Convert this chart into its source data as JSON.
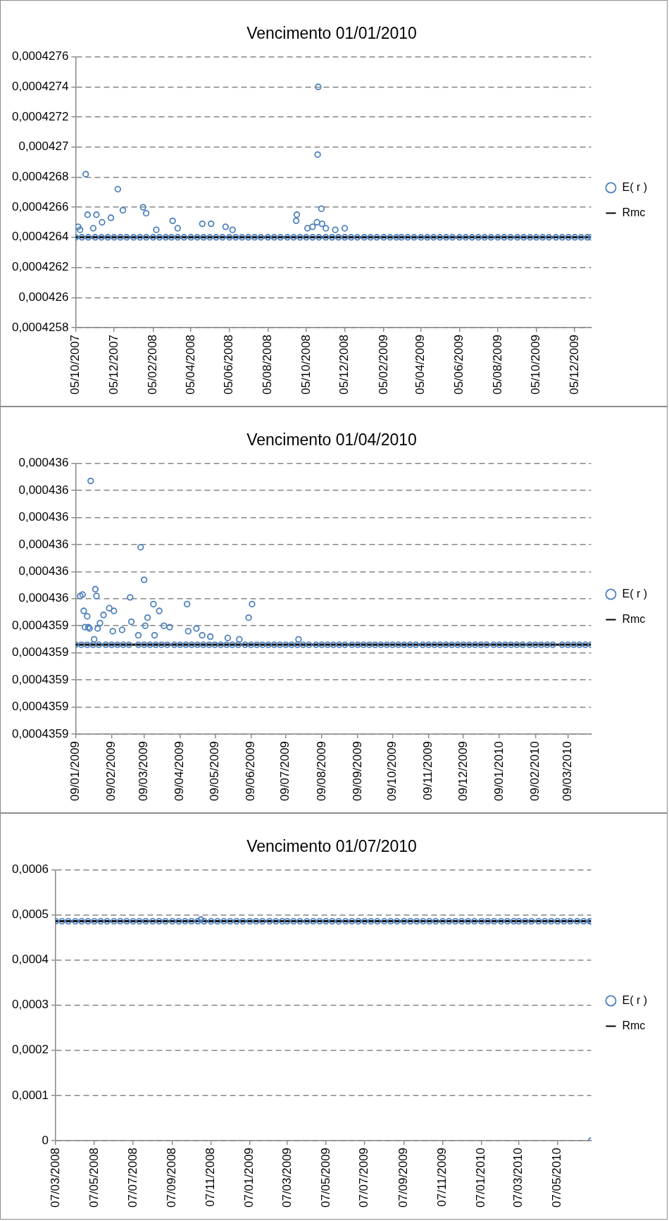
{
  "chart_data": [
    {
      "type": "scatter",
      "title": "Vencimento 01/01/2010",
      "grid": "y",
      "legend": "right",
      "xlim": [
        "2007-10-05",
        "2009-12-31"
      ],
      "xticks": [
        {
          "value": "2007-10-05",
          "label": "05/10/2007"
        },
        {
          "value": "2007-12-05",
          "label": "05/12/2007"
        },
        {
          "value": "2008-02-05",
          "label": "05/02/2008"
        },
        {
          "value": "2008-04-05",
          "label": "05/04/2008"
        },
        {
          "value": "2008-06-05",
          "label": "05/06/2008"
        },
        {
          "value": "2008-08-05",
          "label": "05/08/2008"
        },
        {
          "value": "2008-10-05",
          "label": "05/10/2008"
        },
        {
          "value": "2008-12-05",
          "label": "05/12/2008"
        },
        {
          "value": "2009-02-05",
          "label": "05/02/2009"
        },
        {
          "value": "2009-04-05",
          "label": "05/04/2009"
        },
        {
          "value": "2009-06-05",
          "label": "05/06/2009"
        },
        {
          "value": "2009-08-05",
          "label": "05/08/2009"
        },
        {
          "value": "2009-10-05",
          "label": "05/10/2009"
        },
        {
          "value": "2009-12-05",
          "label": "05/12/2009"
        }
      ],
      "ylim": [
        0.0004258,
        0.0004276
      ],
      "yticks": [
        {
          "value": 0.0004258,
          "label": "0,0004258"
        },
        {
          "value": 0.000426,
          "label": "0,000426"
        },
        {
          "value": 0.0004262,
          "label": "0,0004262"
        },
        {
          "value": 0.0004264,
          "label": "0,0004264"
        },
        {
          "value": 0.0004266,
          "label": "0,0004266"
        },
        {
          "value": 0.0004268,
          "label": "0,0004268"
        },
        {
          "value": 0.000427,
          "label": "0,000427"
        },
        {
          "value": 0.0004272,
          "label": "0,0004272"
        },
        {
          "value": 0.0004274,
          "label": "0,0004274"
        },
        {
          "value": 0.0004276,
          "label": "0,0004276"
        }
      ],
      "series": [
        {
          "name": "E( r )",
          "type": "scatter",
          "marker": "circle",
          "color": "#4f81bd",
          "x": [
            "2007-10-05",
            "2007-10-15",
            "2007-10-25",
            "2007-11-05",
            "2007-11-15",
            "2007-11-25",
            "2007-12-05",
            "2007-12-15",
            "2007-12-25",
            "2008-01-05",
            "2008-01-15",
            "2008-01-25",
            "2008-02-05",
            "2008-02-15",
            "2008-02-25",
            "2008-03-05",
            "2008-03-15",
            "2008-03-25",
            "2008-04-05",
            "2008-04-15",
            "2008-04-25",
            "2008-05-05",
            "2008-05-15",
            "2008-05-25",
            "2008-06-05",
            "2008-06-15",
            "2008-06-25",
            "2008-07-05",
            "2008-07-15",
            "2008-07-25",
            "2008-08-05",
            "2008-08-15",
            "2008-08-25",
            "2008-09-05",
            "2008-09-15",
            "2008-09-25",
            "2008-10-05",
            "2008-10-15",
            "2008-10-25",
            "2008-11-05",
            "2008-11-15",
            "2008-11-25",
            "2008-12-05",
            "2008-12-15",
            "2008-12-25",
            "2009-01-05",
            "2009-01-15",
            "2009-01-25",
            "2009-02-05",
            "2009-02-15",
            "2009-02-25",
            "2009-03-05",
            "2009-03-15",
            "2009-03-25",
            "2009-04-05",
            "2009-04-15",
            "2009-04-25",
            "2009-05-05",
            "2009-05-15",
            "2009-05-25",
            "2009-06-05",
            "2009-06-15",
            "2009-06-25",
            "2009-07-05",
            "2009-07-15",
            "2009-07-25",
            "2009-08-05",
            "2009-08-15",
            "2009-08-25",
            "2009-09-05",
            "2009-09-15",
            "2009-09-25",
            "2009-10-05",
            "2009-10-15",
            "2009-10-25",
            "2009-11-05",
            "2009-11-15",
            "2009-11-25",
            "2009-12-05",
            "2009-12-15",
            "2009-12-25",
            "2009-12-31",
            "2007-10-09",
            "2007-10-21",
            "2007-10-24",
            "2007-11-07",
            "2007-11-16",
            "2007-11-30",
            "2007-12-11",
            "2007-12-19",
            "2008-01-20",
            "2008-01-25",
            "2008-03-07",
            "2008-04-23",
            "2008-05-07",
            "2008-05-30",
            "2008-09-19",
            "2008-09-20",
            "2008-10-07",
            "2008-10-15",
            "2008-10-22",
            "2008-10-23",
            "2008-10-24",
            "2008-10-29",
            "2008-10-30",
            "2007-10-12",
            "2007-11-02",
            "2008-02-10",
            "2008-03-15",
            "2008-06-10",
            "2008-11-05",
            "2008-11-20",
            "2008-12-05"
          ],
          "values": [
            0.0004264,
            0.0004264,
            0.0004264,
            0.0004264,
            0.0004264,
            0.0004264,
            0.0004264,
            0.0004264,
            0.0004264,
            0.0004264,
            0.0004264,
            0.0004264,
            0.0004264,
            0.0004264,
            0.0004264,
            0.0004264,
            0.0004264,
            0.0004264,
            0.0004264,
            0.0004264,
            0.0004264,
            0.0004264,
            0.0004264,
            0.0004264,
            0.0004264,
            0.0004264,
            0.0004264,
            0.0004264,
            0.0004264,
            0.0004264,
            0.0004264,
            0.0004264,
            0.0004264,
            0.0004264,
            0.0004264,
            0.0004264,
            0.0004264,
            0.0004264,
            0.0004264,
            0.0004264,
            0.0004264,
            0.0004264,
            0.0004264,
            0.0004264,
            0.0004264,
            0.0004264,
            0.0004264,
            0.0004264,
            0.0004264,
            0.0004264,
            0.0004264,
            0.0004264,
            0.0004264,
            0.0004264,
            0.0004264,
            0.0004264,
            0.0004264,
            0.0004264,
            0.0004264,
            0.0004264,
            0.0004264,
            0.0004264,
            0.0004264,
            0.0004264,
            0.0004264,
            0.0004264,
            0.0004264,
            0.0004264,
            0.0004264,
            0.0004264,
            0.0004264,
            0.0004264,
            0.0004264,
            0.0004264,
            0.0004264,
            0.0004264,
            0.0004264,
            0.0004264,
            0.0004264,
            0.0004264,
            0.0004264,
            0.0004264,
            0.00042647,
            0.00042682,
            0.00042655,
            0.00042655,
            0.0004265,
            0.00042653,
            0.00042672,
            0.00042658,
            0.0004266,
            0.00042656,
            0.00042651,
            0.00042649,
            0.00042649,
            0.00042647,
            0.00042651,
            0.00042655,
            0.00042646,
            0.00042647,
            0.0004265,
            0.00042695,
            0.0004274,
            0.00042659,
            0.00042649,
            0.00042645,
            0.00042646,
            0.00042645,
            0.00042646,
            0.00042645,
            0.00042646,
            0.00042645,
            0.00042646
          ]
        },
        {
          "name": "Rmc",
          "type": "line",
          "marker": "none",
          "color": "#000000",
          "x": [
            "2007-10-05",
            "2009-12-31"
          ],
          "values": [
            0.0004264,
            0.0004264
          ]
        }
      ]
    },
    {
      "type": "scatter",
      "title": "Vencimento 01/04/2010",
      "grid": "y",
      "legend": "right",
      "xlim": [
        "2009-01-09",
        "2010-03-29"
      ],
      "xticks": [
        {
          "value": "2009-01-09",
          "label": "09/01/2009"
        },
        {
          "value": "2009-02-09",
          "label": "09/02/2009"
        },
        {
          "value": "2009-03-09",
          "label": "09/03/2009"
        },
        {
          "value": "2009-04-09",
          "label": "09/04/2009"
        },
        {
          "value": "2009-05-09",
          "label": "09/05/2009"
        },
        {
          "value": "2009-06-09",
          "label": "09/06/2009"
        },
        {
          "value": "2009-07-09",
          "label": "09/07/2009"
        },
        {
          "value": "2009-08-09",
          "label": "09/08/2009"
        },
        {
          "value": "2009-09-09",
          "label": "09/09/2009"
        },
        {
          "value": "2009-10-09",
          "label": "09/10/2009"
        },
        {
          "value": "2009-11-09",
          "label": "09/11/2009"
        },
        {
          "value": "2009-12-09",
          "label": "09/12/2009"
        },
        {
          "value": "2010-01-09",
          "label": "09/01/2010"
        },
        {
          "value": "2010-02-09",
          "label": "09/02/2010"
        },
        {
          "value": "2010-03-09",
          "label": "09/03/2010"
        }
      ],
      "ylim": [
        0.00043586,
        0.00043606
      ],
      "yticks": [
        {
          "value": 0.00043586,
          "label": "0,0004359"
        },
        {
          "value": 0.00043588,
          "label": "0,0004359"
        },
        {
          "value": 0.0004359,
          "label": "0,0004359"
        },
        {
          "value": 0.00043592,
          "label": "0,0004359"
        },
        {
          "value": 0.00043594,
          "label": "0,0004359"
        },
        {
          "value": 0.00043596,
          "label": "0,000436"
        },
        {
          "value": 0.00043598,
          "label": "0,000436"
        },
        {
          "value": 0.000436,
          "label": "0,000436"
        },
        {
          "value": 0.00043602,
          "label": "0,000436"
        },
        {
          "value": 0.00043604,
          "label": "0,000436"
        },
        {
          "value": 0.00043606,
          "label": "0,000436"
        }
      ],
      "series": [
        {
          "name": "E( r )",
          "type": "scatter",
          "marker": "circle",
          "color": "#4f81bd",
          "x": [
            "2009-01-09",
            "2009-01-14",
            "2009-01-19",
            "2009-01-24",
            "2009-01-29",
            "2009-02-04",
            "2009-02-09",
            "2009-02-14",
            "2009-02-19",
            "2009-02-24",
            "2009-03-04",
            "2009-03-09",
            "2009-03-14",
            "2009-03-19",
            "2009-03-24",
            "2009-03-29",
            "2009-04-04",
            "2009-04-09",
            "2009-04-14",
            "2009-04-19",
            "2009-04-24",
            "2009-04-29",
            "2009-05-04",
            "2009-05-09",
            "2009-05-14",
            "2009-05-19",
            "2009-05-24",
            "2009-05-29",
            "2009-06-04",
            "2009-06-09",
            "2009-06-14",
            "2009-06-19",
            "2009-06-24",
            "2009-06-29",
            "2009-07-04",
            "2009-07-09",
            "2009-07-14",
            "2009-07-19",
            "2009-07-24",
            "2009-07-29",
            "2009-08-04",
            "2009-08-09",
            "2009-08-14",
            "2009-08-19",
            "2009-08-24",
            "2009-08-29",
            "2009-09-04",
            "2009-09-09",
            "2009-09-14",
            "2009-09-19",
            "2009-09-24",
            "2009-09-29",
            "2009-10-04",
            "2009-10-09",
            "2009-10-14",
            "2009-10-19",
            "2009-10-24",
            "2009-10-29",
            "2009-11-04",
            "2009-11-09",
            "2009-11-14",
            "2009-11-19",
            "2009-11-24",
            "2009-11-29",
            "2009-12-04",
            "2009-12-09",
            "2009-12-14",
            "2009-12-19",
            "2009-12-24",
            "2009-12-29",
            "2010-01-04",
            "2010-01-09",
            "2010-01-14",
            "2010-01-19",
            "2010-01-24",
            "2010-01-29",
            "2010-02-04",
            "2010-02-09",
            "2010-02-14",
            "2010-02-19",
            "2010-02-24",
            "2010-03-04",
            "2010-03-09",
            "2010-03-14",
            "2010-03-19",
            "2010-03-24",
            "2010-03-29",
            "2009-01-22",
            "2009-03-06",
            "2009-03-09",
            "2009-01-13",
            "2009-01-15",
            "2009-01-26",
            "2009-01-27",
            "2009-01-16",
            "2009-01-19",
            "2009-01-17",
            "2009-01-20",
            "2009-01-21",
            "2009-01-25",
            "2009-01-28",
            "2009-01-30",
            "2009-02-02",
            "2009-02-07",
            "2009-02-11",
            "2009-02-10",
            "2009-02-18",
            "2009-02-25",
            "2009-02-26",
            "2009-03-04",
            "2009-03-10",
            "2009-03-12",
            "2009-03-17",
            "2009-03-22",
            "2009-03-18",
            "2009-03-26",
            "2009-03-31",
            "2009-04-15",
            "2009-04-16",
            "2009-04-23",
            "2009-04-28",
            "2009-05-05",
            "2009-05-20",
            "2009-05-30",
            "2009-06-07",
            "2009-06-10",
            "2009-07-20"
          ],
          "values": [
            0.000435926,
            0.000435926,
            0.000435926,
            0.000435926,
            0.000435926,
            0.000435926,
            0.000435926,
            0.000435926,
            0.000435926,
            0.000435926,
            0.000435926,
            0.000435926,
            0.000435926,
            0.000435926,
            0.000435926,
            0.000435926,
            0.000435926,
            0.000435926,
            0.000435926,
            0.000435926,
            0.000435926,
            0.000435926,
            0.000435926,
            0.000435926,
            0.000435926,
            0.000435926,
            0.000435926,
            0.000435926,
            0.000435926,
            0.000435926,
            0.000435926,
            0.000435926,
            0.000435926,
            0.000435926,
            0.000435926,
            0.000435926,
            0.000435926,
            0.000435926,
            0.000435926,
            0.000435926,
            0.000435926,
            0.000435926,
            0.000435926,
            0.000435926,
            0.000435926,
            0.000435926,
            0.000435926,
            0.000435926,
            0.000435926,
            0.000435926,
            0.000435926,
            0.000435926,
            0.000435926,
            0.000435926,
            0.000435926,
            0.000435926,
            0.000435926,
            0.000435926,
            0.000435926,
            0.000435926,
            0.000435926,
            0.000435926,
            0.000435926,
            0.000435926,
            0.000435926,
            0.000435926,
            0.000435926,
            0.000435926,
            0.000435926,
            0.000435926,
            0.000435926,
            0.000435926,
            0.000435926,
            0.000435926,
            0.000435926,
            0.000435926,
            0.000435926,
            0.000435926,
            0.000435926,
            0.000435926,
            0.000435926,
            0.000435926,
            0.000435926,
            0.000435926,
            0.000435926,
            0.000435926,
            0.000435926,
            0.000436047,
            0.000435998,
            0.000435974,
            0.000435962,
            0.000435963,
            0.000435967,
            0.000435962,
            0.000435951,
            0.000435947,
            0.000435939,
            0.000435939,
            0.000435938,
            0.00043593,
            0.000435938,
            0.000435942,
            0.000435948,
            0.000435953,
            0.000435951,
            0.000435936,
            0.000435937,
            0.000435961,
            0.000435943,
            0.000435933,
            0.00043594,
            0.000435946,
            0.000435956,
            0.000435951,
            0.000435933,
            0.00043594,
            0.000435939,
            0.000435956,
            0.000435936,
            0.000435938,
            0.000435933,
            0.000435932,
            0.000435931,
            0.00043593,
            0.000435946,
            0.000435956,
            0.00043593
          ]
        },
        {
          "name": "Rmc",
          "type": "line",
          "marker": "none",
          "color": "#000000",
          "x": [
            "2009-01-09",
            "2010-03-29"
          ],
          "values": [
            0.000435926,
            0.000435926
          ]
        }
      ]
    },
    {
      "type": "scatter",
      "title": "Vencimento 01/07/2010",
      "grid": "y",
      "legend": "right",
      "xlim": [
        "2008-03-07",
        "2010-06-29"
      ],
      "xticks": [
        {
          "value": "2008-03-07",
          "label": "07/03/2008"
        },
        {
          "value": "2008-05-07",
          "label": "07/05/2008"
        },
        {
          "value": "2008-07-07",
          "label": "07/07/2008"
        },
        {
          "value": "2008-09-07",
          "label": "07/09/2008"
        },
        {
          "value": "2008-11-07",
          "label": "07/11/2008"
        },
        {
          "value": "2009-01-07",
          "label": "07/01/2009"
        },
        {
          "value": "2009-03-07",
          "label": "07/03/2009"
        },
        {
          "value": "2009-05-07",
          "label": "07/05/2009"
        },
        {
          "value": "2009-07-07",
          "label": "07/07/2009"
        },
        {
          "value": "2009-09-07",
          "label": "07/09/2009"
        },
        {
          "value": "2009-11-07",
          "label": "07/11/2009"
        },
        {
          "value": "2010-01-07",
          "label": "07/01/2010"
        },
        {
          "value": "2010-03-07",
          "label": "07/03/2010"
        },
        {
          "value": "2010-05-07",
          "label": "07/05/2010"
        }
      ],
      "ylim": [
        0,
        0.0006
      ],
      "yticks": [
        0,
        {
          "value": 0.0001,
          "label": "0,0001"
        },
        {
          "value": 0.0002,
          "label": "0,0002"
        },
        {
          "value": 0.0003,
          "label": "0,0003"
        },
        {
          "value": 0.0004,
          "label": "0,0004"
        },
        {
          "value": 0.0005,
          "label": "0,0005"
        },
        {
          "value": 0.0006,
          "label": "0,0006"
        }
      ],
      "series": [
        {
          "name": "E( r )",
          "type": "scatter",
          "marker": "circle",
          "color": "#4f81bd",
          "x": [
            "2008-03-07",
            "2008-03-17",
            "2008-03-27",
            "2008-04-07",
            "2008-04-17",
            "2008-04-27",
            "2008-05-07",
            "2008-05-17",
            "2008-05-27",
            "2008-06-07",
            "2008-06-17",
            "2008-06-27",
            "2008-07-07",
            "2008-07-17",
            "2008-07-27",
            "2008-08-07",
            "2008-08-17",
            "2008-08-27",
            "2008-09-07",
            "2008-09-17",
            "2008-09-27",
            "2008-10-07",
            "2008-10-17",
            "2008-10-27",
            "2008-11-07",
            "2008-11-17",
            "2008-11-27",
            "2008-12-07",
            "2008-12-17",
            "2008-12-27",
            "2009-01-07",
            "2009-01-17",
            "2009-01-27",
            "2009-02-07",
            "2009-02-17",
            "2009-02-27",
            "2009-03-07",
            "2009-03-17",
            "2009-03-27",
            "2009-04-07",
            "2009-04-17",
            "2009-04-27",
            "2009-05-07",
            "2009-05-17",
            "2009-05-27",
            "2009-06-07",
            "2009-06-17",
            "2009-06-27",
            "2009-07-07",
            "2009-07-17",
            "2009-07-27",
            "2009-08-07",
            "2009-08-17",
            "2009-08-27",
            "2009-09-07",
            "2009-09-17",
            "2009-09-27",
            "2009-10-07",
            "2009-10-17",
            "2009-10-27",
            "2009-11-07",
            "2009-11-17",
            "2009-11-27",
            "2009-12-07",
            "2009-12-17",
            "2009-12-27",
            "2010-01-07",
            "2010-01-17",
            "2010-01-27",
            "2010-02-07",
            "2010-02-17",
            "2010-02-27",
            "2010-03-07",
            "2010-03-17",
            "2010-03-27",
            "2010-04-07",
            "2010-04-17",
            "2010-04-27",
            "2010-05-07",
            "2010-05-17",
            "2010-05-27",
            "2010-06-07",
            "2010-06-17",
            "2010-06-27",
            "2010-06-29",
            "2008-10-22",
            "2010-06-29"
          ],
          "values": [
            0.000486,
            0.000486,
            0.000486,
            0.000486,
            0.000486,
            0.000486,
            0.000486,
            0.000486,
            0.000486,
            0.000486,
            0.000486,
            0.000486,
            0.000486,
            0.000486,
            0.000486,
            0.000486,
            0.000486,
            0.000486,
            0.000486,
            0.000486,
            0.000486,
            0.000486,
            0.000486,
            0.000486,
            0.000486,
            0.000486,
            0.000486,
            0.000486,
            0.000486,
            0.000486,
            0.000486,
            0.000486,
            0.000486,
            0.000486,
            0.000486,
            0.000486,
            0.000486,
            0.000486,
            0.000486,
            0.000486,
            0.000486,
            0.000486,
            0.000486,
            0.000486,
            0.000486,
            0.000486,
            0.000486,
            0.000486,
            0.000486,
            0.000486,
            0.000486,
            0.000486,
            0.000486,
            0.000486,
            0.000486,
            0.000486,
            0.000486,
            0.000486,
            0.000486,
            0.000486,
            0.000486,
            0.000486,
            0.000486,
            0.000486,
            0.000486,
            0.000486,
            0.000486,
            0.000486,
            0.000486,
            0.000486,
            0.000486,
            0.000486,
            0.000486,
            0.000486,
            0.000486,
            0.000486,
            0.000486,
            0.000486,
            0.000486,
            0.000486,
            0.000486,
            0.000486,
            0.000486,
            0.000486,
            0.000486,
            0.00049,
            0
          ]
        },
        {
          "name": "Rmc",
          "type": "line",
          "marker": "none",
          "color": "#000000",
          "x": [
            "2008-03-07",
            "2010-06-29"
          ],
          "values": [
            0.000486,
            0.000486
          ]
        }
      ]
    }
  ]
}
